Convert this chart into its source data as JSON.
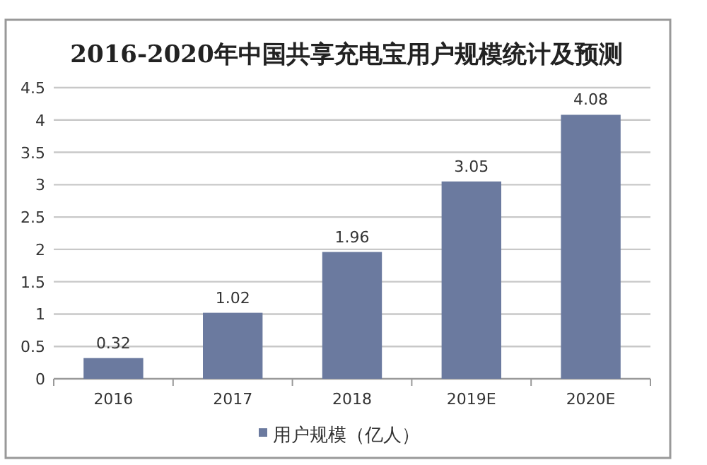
{
  "chart_data": {
    "type": "bar",
    "title": "2016-2020年中国共享充电宝用户规模统计及预测",
    "categories": [
      "2016",
      "2017",
      "2018",
      "2019E",
      "2020E"
    ],
    "series": [
      {
        "name": "用户规模（亿人）",
        "color": "#6b7a9f",
        "values": [
          0.32,
          1.02,
          1.96,
          3.05,
          4.08
        ]
      }
    ],
    "ylim": [
      0,
      4.5
    ],
    "yticks": [
      0,
      0.5,
      1,
      1.5,
      2,
      2.5,
      3,
      3.5,
      4,
      4.5
    ],
    "grid": "y",
    "legend": "bottom",
    "data_labels": true
  }
}
